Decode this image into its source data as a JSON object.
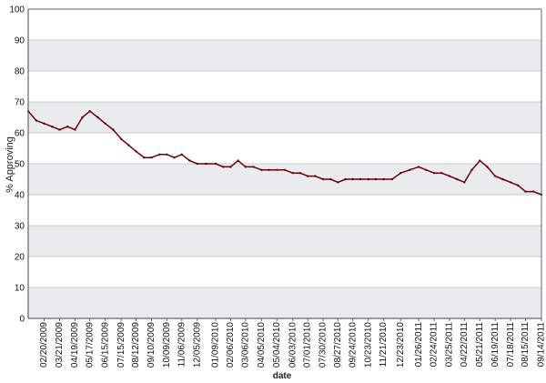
{
  "chart_data": {
    "type": "line",
    "title": "",
    "xlabel": "date",
    "ylabel": "% Approving",
    "ylim": [
      0,
      100
    ],
    "yticks": [
      0,
      10,
      20,
      30,
      40,
      50,
      60,
      70,
      80,
      90,
      100
    ],
    "grid": true,
    "legend": "none",
    "x_tick_labels": [
      "02/20/2009",
      "03/21/2009",
      "04/19/2009",
      "05/17/2009",
      "06/15/2009",
      "07/15/2009",
      "08/12/2009",
      "09/10/2009",
      "10/09/2009",
      "11/06/2009",
      "12/05/2009",
      "01/09/2010",
      "02/06/2010",
      "03/06/2010",
      "04/05/2010",
      "05/04/2010",
      "06/03/2010",
      "07/01/2010",
      "07/30/2010",
      "08/27/2010",
      "09/24/2010",
      "10/23/2010",
      "11/21/2010",
      "12/23/2010",
      "01/26/2011",
      "02/24/2011",
      "03/25/2011",
      "04/22/2011",
      "05/21/2011",
      "06/19/2011",
      "07/18/2011",
      "08/15/2011",
      "09/14/2011"
    ],
    "series": [
      {
        "color": "#6b0000",
        "x": [
          "01/21/2009",
          "02/05/2009",
          "02/20/2009",
          "03/07/2009",
          "03/21/2009",
          "04/05/2009",
          "04/19/2009",
          "05/03/2009",
          "05/17/2009",
          "06/01/2009",
          "06/15/2009",
          "06/30/2009",
          "07/15/2009",
          "07/29/2009",
          "08/12/2009",
          "08/27/2009",
          "09/10/2009",
          "09/25/2009",
          "10/09/2009",
          "10/23/2009",
          "11/06/2009",
          "11/21/2009",
          "12/05/2009",
          "12/22/2009",
          "01/09/2010",
          "01/23/2010",
          "02/06/2010",
          "02/20/2010",
          "03/06/2010",
          "03/21/2010",
          "04/05/2010",
          "04/19/2010",
          "05/04/2010",
          "05/19/2010",
          "06/03/2010",
          "06/17/2010",
          "07/01/2010",
          "07/15/2010",
          "07/30/2010",
          "08/13/2010",
          "08/27/2010",
          "09/10/2010",
          "09/24/2010",
          "10/08/2010",
          "10/23/2010",
          "11/06/2010",
          "11/21/2010",
          "12/07/2010",
          "12/23/2010",
          "01/09/2011",
          "01/26/2011",
          "02/09/2011",
          "02/24/2011",
          "03/10/2011",
          "03/25/2011",
          "04/08/2011",
          "04/22/2011",
          "05/06/2011",
          "05/21/2011",
          "06/04/2011",
          "06/19/2011",
          "07/03/2011",
          "07/18/2011",
          "08/01/2011",
          "08/15/2011",
          "08/30/2011",
          "09/14/2011"
        ],
        "y": [
          67,
          64,
          63,
          62,
          61,
          62,
          61,
          65,
          67,
          65,
          63,
          61,
          58,
          56,
          54,
          52,
          52,
          53,
          53,
          52,
          53,
          51,
          50,
          50,
          50,
          49,
          49,
          51,
          49,
          49,
          48,
          48,
          48,
          48,
          47,
          47,
          46,
          46,
          45,
          45,
          44,
          45,
          45,
          45,
          45,
          45,
          45,
          45,
          47,
          48,
          49,
          48,
          47,
          47,
          46,
          45,
          44,
          48,
          51,
          49,
          46,
          45,
          44,
          43,
          41,
          41,
          40
        ]
      }
    ]
  }
}
